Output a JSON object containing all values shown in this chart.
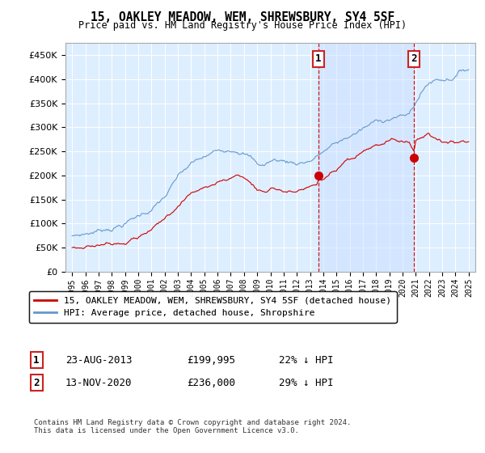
{
  "title": "15, OAKLEY MEADOW, WEM, SHREWSBURY, SY4 5SF",
  "subtitle": "Price paid vs. HM Land Registry's House Price Index (HPI)",
  "legend_line1": "15, OAKLEY MEADOW, WEM, SHREWSBURY, SY4 5SF (detached house)",
  "legend_line2": "HPI: Average price, detached house, Shropshire",
  "annotation1_label": "1",
  "annotation1_date": "23-AUG-2013",
  "annotation1_price": "£199,995",
  "annotation1_hpi": "22% ↓ HPI",
  "annotation1_year": 2013.64,
  "annotation1_value": 199995,
  "annotation2_label": "2",
  "annotation2_date": "13-NOV-2020",
  "annotation2_price": "£236,000",
  "annotation2_hpi": "29% ↓ HPI",
  "annotation2_year": 2020.87,
  "annotation2_value": 236000,
  "copyright": "Contains HM Land Registry data © Crown copyright and database right 2024.\nThis data is licensed under the Open Government Licence v3.0.",
  "ylim": [
    0,
    475000
  ],
  "xlim": [
    1994.5,
    2025.5
  ],
  "plot_bg_color": "#ddeeff",
  "shade_color": "#cce0ff",
  "red_color": "#cc0000",
  "blue_color": "#6699cc"
}
